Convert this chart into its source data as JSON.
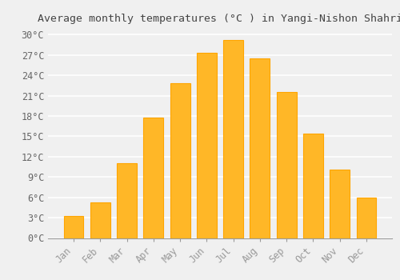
{
  "title": "Average monthly temperatures (°C ) in Yangi-Nishon Shahri",
  "months": [
    "Jan",
    "Feb",
    "Mar",
    "Apr",
    "May",
    "Jun",
    "Jul",
    "Aug",
    "Sep",
    "Oct",
    "Nov",
    "Dec"
  ],
  "temperatures": [
    3.2,
    5.3,
    11.0,
    17.8,
    22.8,
    27.3,
    29.2,
    26.5,
    21.5,
    15.4,
    10.1,
    6.0
  ],
  "bar_color": "#FFB727",
  "bar_edge_color": "#FFA500",
  "background_color": "#F0F0F0",
  "grid_color": "#FFFFFF",
  "ylim": [
    0,
    31
  ],
  "yticks": [
    0,
    3,
    6,
    9,
    12,
    15,
    18,
    21,
    24,
    27,
    30
  ],
  "ytick_labels": [
    "0°C",
    "3°C",
    "6°C",
    "9°C",
    "12°C",
    "15°C",
    "18°C",
    "21°C",
    "24°C",
    "27°C",
    "30°C"
  ],
  "title_fontsize": 9.5,
  "tick_fontsize": 8.5
}
